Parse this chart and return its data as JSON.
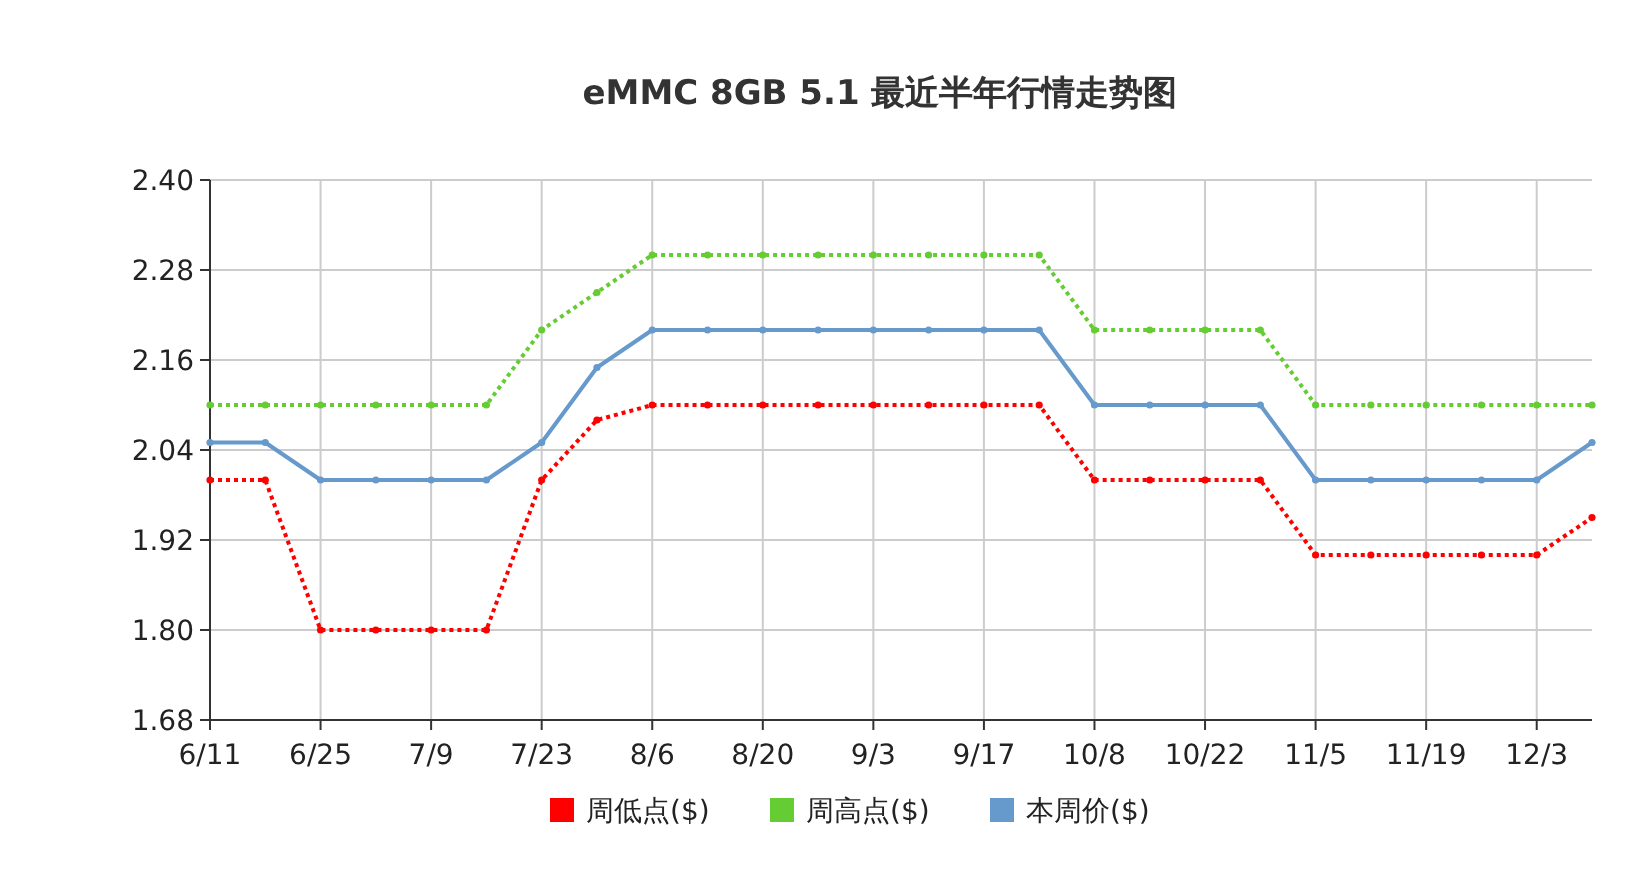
{
  "chart_data": {
    "type": "line",
    "title": "eMMC 8GB 5.1 最近半年行情走势图",
    "categories": [
      "6/11",
      null,
      "6/25",
      null,
      "7/9",
      null,
      "7/23",
      null,
      "8/6",
      null,
      "8/20",
      null,
      "9/3",
      null,
      "9/17",
      null,
      "10/8",
      null,
      "10/22",
      null,
      "11/5",
      null,
      "11/19",
      null,
      "12/3",
      null
    ],
    "series": [
      {
        "name": "周低点($)",
        "color": "#ff0000",
        "line_style": "dotted",
        "values": [
          2.0,
          2.0,
          1.8,
          1.8,
          1.8,
          1.8,
          2.0,
          2.08,
          2.1,
          2.1,
          2.1,
          2.1,
          2.1,
          2.1,
          2.1,
          2.1,
          2.0,
          2.0,
          2.0,
          2.0,
          1.9,
          1.9,
          1.9,
          1.9,
          1.9,
          1.95
        ]
      },
      {
        "name": "周高点($)",
        "color": "#66cc33",
        "line_style": "dotted",
        "values": [
          2.1,
          2.1,
          2.1,
          2.1,
          2.1,
          2.1,
          2.2,
          2.25,
          2.3,
          2.3,
          2.3,
          2.3,
          2.3,
          2.3,
          2.3,
          2.3,
          2.2,
          2.2,
          2.2,
          2.2,
          2.1,
          2.1,
          2.1,
          2.1,
          2.1,
          2.1
        ]
      },
      {
        "name": "本周价($)",
        "color": "#6699cc",
        "line_style": "solid",
        "values": [
          2.05,
          2.05,
          2.0,
          2.0,
          2.0,
          2.0,
          2.05,
          2.15,
          2.2,
          2.2,
          2.2,
          2.2,
          2.2,
          2.2,
          2.2,
          2.2,
          2.1,
          2.1,
          2.1,
          2.1,
          2.0,
          2.0,
          2.0,
          2.0,
          2.0,
          2.05
        ]
      }
    ],
    "ylim": [
      1.68,
      2.4
    ],
    "yticks": [
      {
        "value": 1.68,
        "label": "1.68"
      },
      {
        "value": 1.8,
        "label": "1.80"
      },
      {
        "value": 1.92,
        "label": "1.92"
      },
      {
        "value": 2.04,
        "label": "2.04"
      },
      {
        "value": 2.16,
        "label": "2.16"
      },
      {
        "value": 2.28,
        "label": "2.28"
      },
      {
        "value": 2.4,
        "label": "2.40"
      }
    ],
    "grid": true,
    "legend": "bottom",
    "marker": "circle"
  }
}
